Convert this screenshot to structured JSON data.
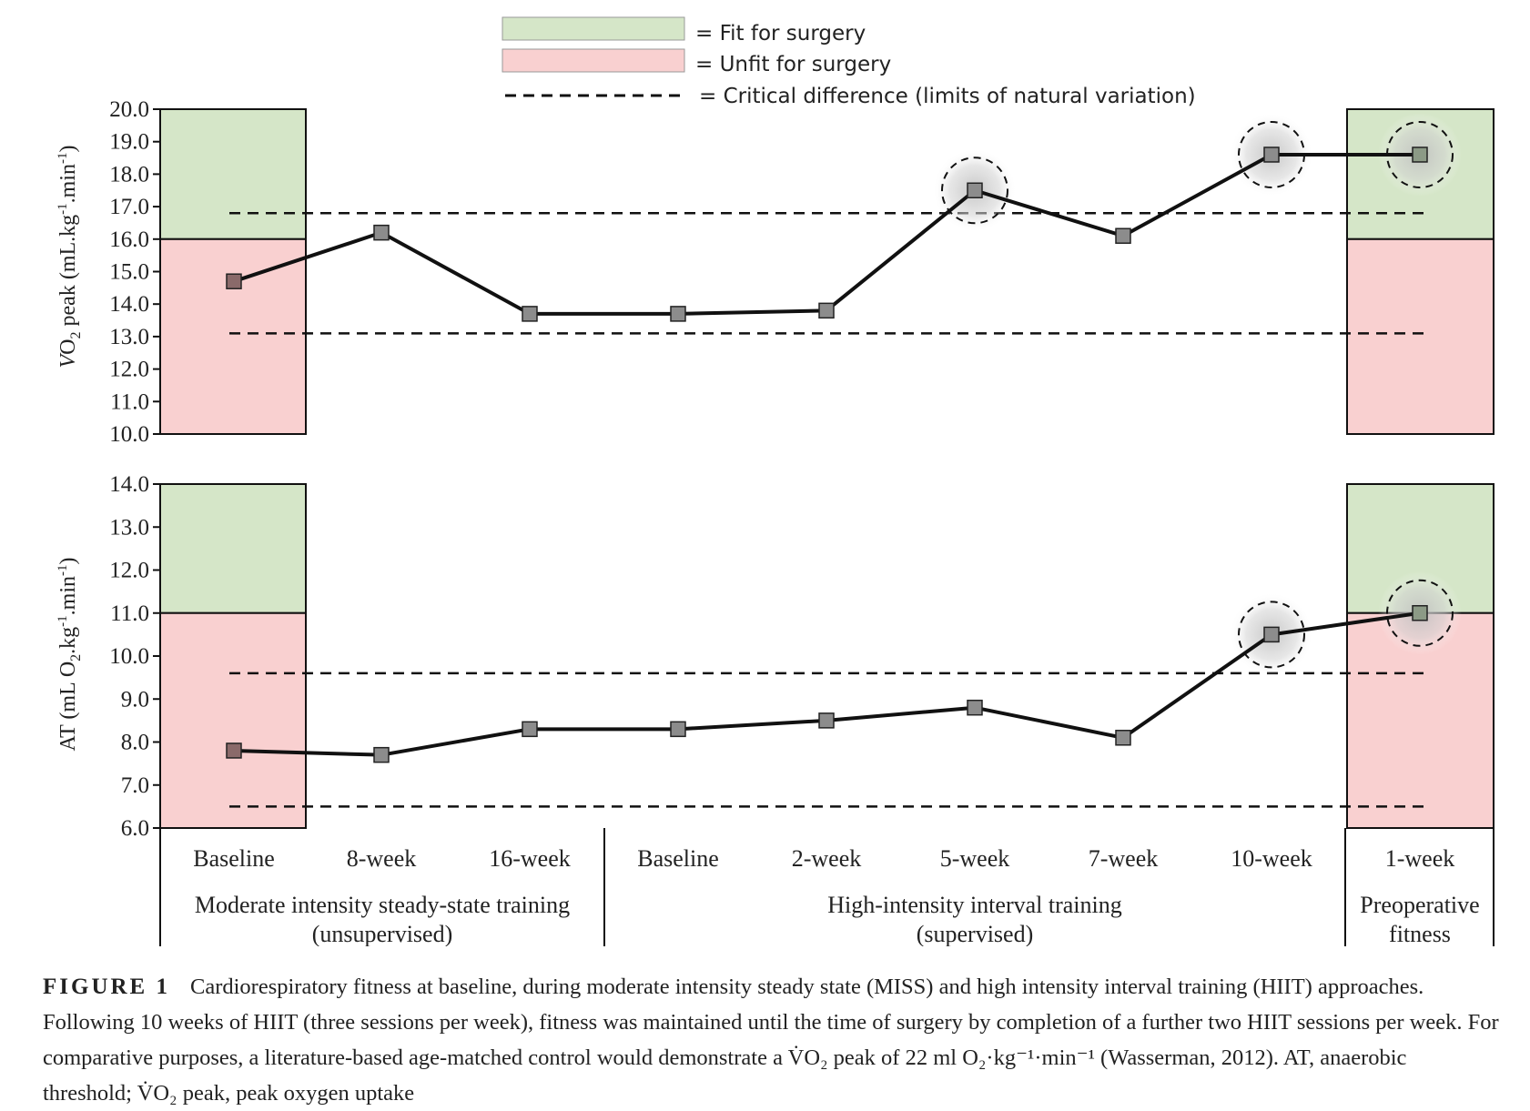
{
  "legend": {
    "fit_label": "= Fit for surgery",
    "unfit_label": "= Unfit for surgery",
    "critical_label": "= Critical difference (limits of natural variation)"
  },
  "colors": {
    "fit_zone": "#d5e6c8",
    "unfit_zone": "#f9d0d0",
    "marker": "#8c8c8c",
    "line": "#111111",
    "highlight_halo": "#cfcfcf"
  },
  "chart_data": [
    {
      "type": "line",
      "ylabel": "VO₂ peak (mL.kg⁻¹.min⁻¹)",
      "ylabel_parts": {
        "v": "V",
        "o": "O",
        "sub": "2",
        "rest": " peak (mL.kg",
        "e1": "-1",
        "mid": ".min",
        "e2": "-1",
        "close": ")"
      },
      "ylim": [
        10,
        20
      ],
      "yticks": [
        "10.0",
        "11.0",
        "12.0",
        "13.0",
        "14.0",
        "15.0",
        "16.0",
        "17.0",
        "18.0",
        "19.0",
        "20.0"
      ],
      "categories": [
        "Baseline",
        "8-week",
        "16-week",
        "Baseline",
        "2-week",
        "5-week",
        "7-week",
        "10-week",
        "1-week"
      ],
      "values": [
        14.7,
        16.2,
        13.7,
        13.7,
        13.8,
        17.5,
        16.1,
        18.6,
        18.6
      ],
      "highlighted": [
        "5-week",
        "10-week",
        "1-week"
      ],
      "fit_threshold": 16.0,
      "critical_difference": {
        "upper": 16.8,
        "lower": 13.1
      }
    },
    {
      "type": "line",
      "ylabel": "AT (mL O₂.kg⁻¹.min⁻¹)",
      "ylabel_parts": {
        "pre": "AT (mL O",
        "sub": "2",
        "kg": ".kg",
        "e1": "-1",
        "mid": ".min",
        "e2": "-1",
        "close": ")"
      },
      "ylim": [
        6,
        14
      ],
      "yticks": [
        "6.0",
        "7.0",
        "8.0",
        "9.0",
        "10.0",
        "11.0",
        "12.0",
        "13.0",
        "14.0"
      ],
      "categories": [
        "Baseline",
        "8-week",
        "16-week",
        "Baseline",
        "2-week",
        "5-week",
        "7-week",
        "10-week",
        "1-week"
      ],
      "values": [
        7.8,
        7.7,
        8.3,
        8.3,
        8.5,
        8.8,
        8.1,
        10.5,
        11.0
      ],
      "highlighted": [
        "10-week",
        "1-week"
      ],
      "fit_threshold": 11.0,
      "critical_difference": {
        "upper": 9.6,
        "lower": 6.5
      }
    }
  ],
  "x_axis": {
    "tick_labels": [
      "Baseline",
      "8-week",
      "16-week",
      "Baseline",
      "2-week",
      "5-week",
      "7-week",
      "10-week",
      "1-week"
    ],
    "groups": [
      {
        "line1": "Moderate intensity steady-state training",
        "line2": "(unsupervised)"
      },
      {
        "line1": "High-intensity interval training",
        "line2": "(supervised)"
      },
      {
        "line1": "Preoperative",
        "line2": "fitness"
      }
    ]
  },
  "caption": {
    "label": "FIGURE 1",
    "text": "Cardiorespiratory fitness at baseline, during moderate intensity steady state (MISS) and high intensity interval training (HIIT) approaches. Following 10 weeks of HIIT (three sessions per week), fitness was maintained until the time of surgery by completion of a further two HIIT sessions per week. For comparative purposes, a literature-based age-matched control would demonstrate a V̇O₂ peak of 22 ml O₂·kg⁻¹·min⁻¹ (Wasserman, 2012). AT, anaerobic threshold; V̇O₂ peak, peak oxygen uptake"
  }
}
